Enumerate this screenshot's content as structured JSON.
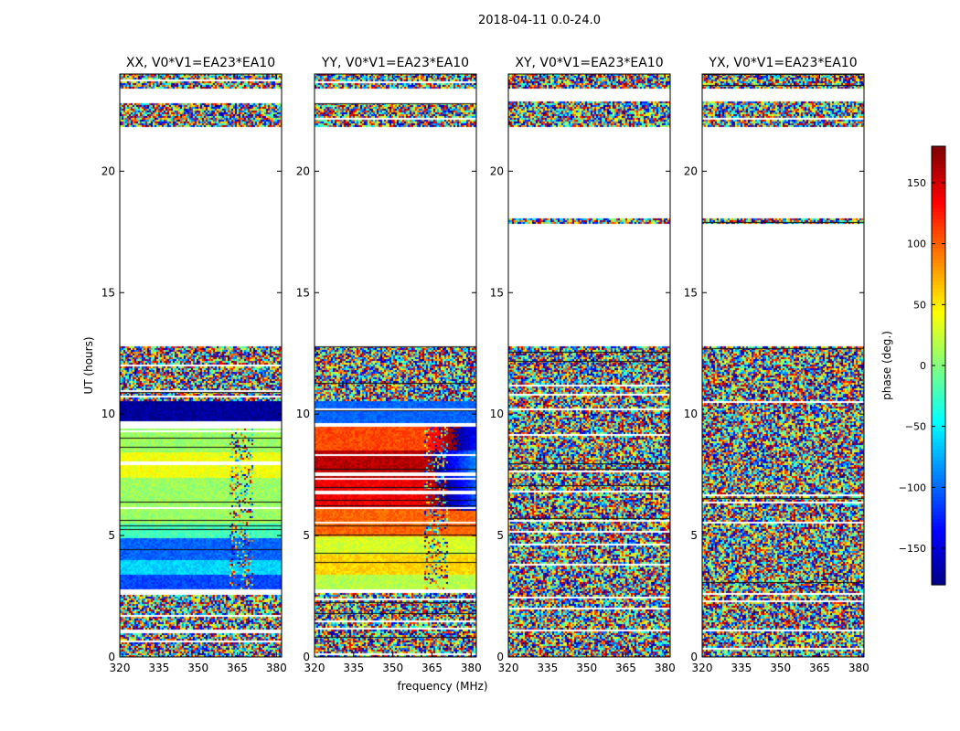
{
  "chart_data": {
    "type": "heatmap",
    "title": "2018-04-11 0.0-24.0",
    "xlabel": "frequency (MHz)",
    "ylabel": "UT (hours)",
    "colorbar_label": "phase (deg.)",
    "xlim": [
      320,
      382
    ],
    "ylim": [
      0,
      24
    ],
    "xticks": [
      320,
      335,
      350,
      365,
      380
    ],
    "yticks": [
      0,
      5,
      10,
      15,
      20
    ],
    "colorbar_range": [
      -180,
      180
    ],
    "colorbar_ticks": [
      150,
      100,
      50,
      0,
      -50,
      -100,
      -150
    ],
    "colormap": "jet",
    "panels": [
      {
        "title": "XX, V0*V1=EA23*EA10",
        "flagged_ut_ranges": [
          [
            12.8,
            17.85
          ],
          [
            18.05,
            21.8
          ],
          [
            22.85,
            23.4
          ],
          [
            9.5,
            9.55
          ],
          [
            6.1,
            6.15
          ],
          [
            2.7,
            2.8
          ]
        ],
        "band_phases": [
          {
            "ut": [
              0,
              1.5
            ],
            "phase": "noise"
          },
          {
            "ut": [
              1.5,
              2.6
            ],
            "phase": "noise"
          },
          {
            "ut": [
              2.8,
              3.4
            ],
            "phase": -110
          },
          {
            "ut": [
              3.4,
              4.0
            ],
            "phase": -60
          },
          {
            "ut": [
              4.0,
              4.9
            ],
            "phase": -100
          },
          {
            "ut": [
              4.9,
              5.5
            ],
            "phase": -20
          },
          {
            "ut": [
              5.5,
              7.4
            ],
            "phase": 10
          },
          {
            "ut": [
              7.4,
              8.4
            ],
            "phase": 40
          },
          {
            "ut": [
              8.4,
              9.5
            ],
            "phase": 10
          },
          {
            "ut": [
              9.6,
              10.5
            ],
            "phase": -170
          },
          {
            "ut": [
              10.5,
              12.8
            ],
            "phase": "noise"
          },
          {
            "ut": [
              21.8,
              22.8
            ],
            "phase": "noise"
          },
          {
            "ut": [
              23.4,
              24.0
            ],
            "phase": "noise"
          }
        ]
      },
      {
        "title": "YY, V0*V1=EA23*EA10",
        "flagged_ut_ranges": [
          [
            12.8,
            17.85
          ],
          [
            18.05,
            21.8
          ],
          [
            22.85,
            23.4
          ],
          [
            9.5,
            9.55
          ],
          [
            6.1,
            6.15
          ],
          [
            2.7,
            2.8
          ]
        ],
        "band_phases": [
          {
            "ut": [
              0,
              2.6
            ],
            "phase": "noise"
          },
          {
            "ut": [
              2.8,
              3.4
            ],
            "phase": 20
          },
          {
            "ut": [
              3.4,
              4.2
            ],
            "phase": 60
          },
          {
            "ut": [
              4.2,
              5.0
            ],
            "phase": 30
          },
          {
            "ut": [
              5.0,
              6.2
            ],
            "phase": 100
          },
          {
            "ut": [
              6.2,
              7.4
            ],
            "phase": 140
          },
          {
            "ut": [
              7.4,
              8.5
            ],
            "phase": 160
          },
          {
            "ut": [
              8.5,
              9.5
            ],
            "phase": 110
          },
          {
            "ut": [
              9.6,
              10.5
            ],
            "phase": -100
          },
          {
            "ut": [
              10.5,
              12.8
            ],
            "phase": "noise"
          },
          {
            "ut": [
              21.8,
              22.8
            ],
            "phase": "noise"
          },
          {
            "ut": [
              23.4,
              24.0
            ],
            "phase": "noise"
          }
        ]
      },
      {
        "title": "XY, V0*V1=EA23*EA10",
        "flagged_ut_ranges": [
          [
            12.8,
            17.85
          ],
          [
            18.05,
            21.8
          ],
          [
            22.85,
            23.4
          ]
        ],
        "band_phases": [
          {
            "ut": [
              0,
              24
            ],
            "phase": "noise"
          }
        ]
      },
      {
        "title": "YX, V0*V1=EA23*EA10",
        "flagged_ut_ranges": [
          [
            12.8,
            17.85
          ],
          [
            18.05,
            21.8
          ],
          [
            22.85,
            23.4
          ]
        ],
        "band_phases": [
          {
            "ut": [
              0,
              24
            ],
            "phase": "noise"
          }
        ]
      }
    ]
  }
}
